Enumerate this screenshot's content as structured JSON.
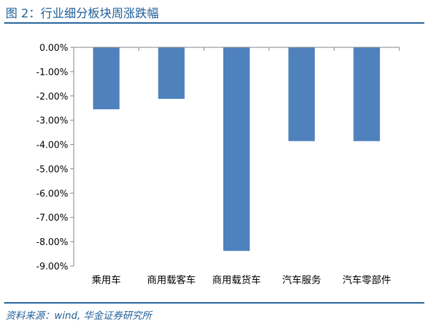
{
  "header": {
    "title": "图 2：行业细分板块周涨跌幅"
  },
  "footer": {
    "source": "资料来源：wind, 华金证券研究所"
  },
  "colors": {
    "bar": "#4f81bd",
    "accent": "#1f5f99",
    "axis": "#808080"
  },
  "chart_data": {
    "type": "bar",
    "title": "",
    "xlabel": "",
    "ylabel": "",
    "categories": [
      "乘用车",
      "商用载客车",
      "商用载货车",
      "汽车服务",
      "汽车零部件"
    ],
    "values": [
      -2.55,
      -2.12,
      -8.38,
      -3.86,
      -3.86
    ],
    "unit": "%",
    "ylim": [
      -9,
      0
    ],
    "y_ticks": [
      0,
      -1,
      -2,
      -3,
      -4,
      -5,
      -6,
      -7,
      -8,
      -9
    ],
    "y_tick_labels": [
      "0.00%",
      "-1.00%",
      "-2.00%",
      "-3.00%",
      "-4.00%",
      "-5.00%",
      "-6.00%",
      "-7.00%",
      "-8.00%",
      "-9.00%"
    ],
    "grid": false,
    "legend": "none"
  }
}
